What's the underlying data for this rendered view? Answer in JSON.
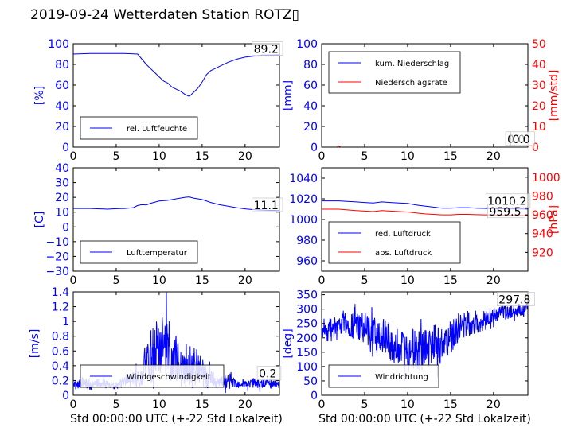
{
  "figure": {
    "title": "2019-09-24 Wetterdaten Station ROTZ▯"
  },
  "chart_data": [
    {
      "id": "humidity",
      "type": "line",
      "xlim": [
        0,
        24
      ],
      "xticks": [
        0,
        5,
        10,
        15,
        20
      ],
      "xlabel": "",
      "ylim": [
        0,
        100
      ],
      "yticks": [
        0,
        20,
        40,
        60,
        80,
        100
      ],
      "ylabel": "[%]",
      "ylabel_color": "#0000ff",
      "ytick_color": "#0000ff",
      "legend": {
        "placement": "bottom-left",
        "entries": [
          {
            "label": "rel. Luftfeuchte",
            "color": "#0000ff"
          }
        ]
      },
      "annotations": [
        {
          "text": "89.2",
          "x": 21.0,
          "y": 91
        }
      ],
      "series": [
        {
          "name": "rel. Luftfeuchte",
          "color": "#0000ff",
          "axis": "left",
          "x": [
            0,
            2,
            4,
            6,
            7.5,
            8.0,
            8.5,
            9,
            9.5,
            10,
            10.5,
            11,
            11.5,
            12,
            12.5,
            13,
            13.5,
            14,
            14.5,
            15,
            15.5,
            16,
            17,
            18,
            19,
            20,
            21,
            22,
            23,
            24
          ],
          "y": [
            90,
            90.5,
            90.5,
            90.5,
            90,
            85,
            80,
            76,
            72,
            68,
            64,
            62,
            58,
            56,
            54,
            51,
            49,
            53,
            57,
            63,
            70,
            74,
            78,
            82,
            85,
            87,
            88,
            89,
            89.1,
            89.2
          ]
        }
      ]
    },
    {
      "id": "precipitation",
      "type": "line",
      "xlim": [
        0,
        24
      ],
      "xticks": [
        0,
        5,
        10,
        15,
        20
      ],
      "xlabel": "",
      "ylim": [
        0,
        100
      ],
      "yticks": [
        0,
        20,
        40,
        60,
        80,
        100
      ],
      "ylabel": "[mm]",
      "ylabel_color": "#0000ff",
      "ytick_color": "#0000ff",
      "ylim2": [
        0,
        50
      ],
      "yticks2": [
        0,
        10,
        20,
        30,
        40,
        50
      ],
      "ylabel2": "[mm/std]",
      "ylabel2_color": "#ff0000",
      "legend": {
        "placement": "top-left",
        "entries": [
          {
            "label": "kum. Niederschlag",
            "color": "#0000ff"
          },
          {
            "label": "Niederschlagsrate",
            "color": "#ff0000"
          }
        ]
      },
      "annotations": [
        {
          "text": "0.0",
          "x": 21.6,
          "y": 4
        },
        {
          "text": "0.0",
          "x": 22.2,
          "y": 4
        }
      ],
      "series": [
        {
          "name": "kum. Niederschlag",
          "color": "#0000ff",
          "axis": "left",
          "x": [
            0,
            24
          ],
          "y": [
            0,
            0
          ]
        },
        {
          "name": "Niederschlagsrate",
          "color": "#ff0000",
          "axis": "right",
          "x": [
            0,
            1.8,
            2.0,
            2.2,
            24
          ],
          "y": [
            0,
            0,
            0.6,
            0,
            0
          ]
        }
      ]
    },
    {
      "id": "temperature",
      "type": "line",
      "xlim": [
        0,
        24
      ],
      "xticks": [
        0,
        5,
        10,
        15,
        20
      ],
      "xlabel": "",
      "ylim": [
        -30,
        40
      ],
      "yticks": [
        -30,
        -20,
        -10,
        0,
        10,
        20,
        30,
        40
      ],
      "ylabel": "[C]",
      "ylabel_color": "#0000ff",
      "ytick_color": "#0000ff",
      "legend": {
        "placement": "bottom-left",
        "entries": [
          {
            "label": "Lufttemperatur",
            "color": "#0000ff"
          }
        ]
      },
      "annotations": [
        {
          "text": "11.1",
          "x": 21.0,
          "y": 12
        }
      ],
      "series": [
        {
          "name": "Lufttemperatur",
          "color": "#0000ff",
          "axis": "left",
          "x": [
            0,
            2,
            4,
            5,
            6,
            7,
            7.5,
            8,
            8.5,
            9,
            10,
            11,
            12,
            13,
            13.5,
            14,
            15,
            16,
            17,
            18,
            19,
            20,
            21,
            22,
            23,
            24
          ],
          "y": [
            12.5,
            12.5,
            12.0,
            12.3,
            12.5,
            13,
            14.5,
            15,
            14.8,
            16,
            17.5,
            18,
            19,
            20,
            20.3,
            19.5,
            18.5,
            16.5,
            15,
            14,
            13,
            12.2,
            11.7,
            11.4,
            11.2,
            11.1
          ]
        }
      ]
    },
    {
      "id": "pressure",
      "type": "line",
      "xlim": [
        0,
        24
      ],
      "xticks": [
        0,
        5,
        10,
        15,
        20
      ],
      "xlabel": "",
      "ylim": [
        950,
        1050
      ],
      "yticks": [
        960,
        980,
        1000,
        1020,
        1040
      ],
      "ylabel": "",
      "ytick_color": "#0000ff",
      "ylim2": [
        900,
        1010
      ],
      "yticks2": [
        920,
        940,
        960,
        980,
        1000
      ],
      "ylabel2": "[hPa]",
      "ylabel2_color": "#ff0000",
      "legend": {
        "placement": "bottom-left",
        "entries": [
          {
            "label": "red. Luftdruck",
            "color": "#0000ff"
          },
          {
            "label": "abs. Luftdruck",
            "color": "#ff0000"
          }
        ]
      },
      "annotations": [
        {
          "text": "1010.2",
          "x": 19.3,
          "y": 1014
        },
        {
          "text": "959.5",
          "x": 19.5,
          "y": 1004
        }
      ],
      "series": [
        {
          "name": "red. Luftdruck",
          "color": "#0000ff",
          "axis": "left",
          "x": [
            0,
            2,
            4,
            5,
            6,
            7,
            8,
            9,
            10,
            11,
            12,
            13,
            14,
            15,
            16,
            17,
            18,
            19,
            20,
            21,
            22,
            23,
            24
          ],
          "y": [
            1018,
            1018,
            1017,
            1016.5,
            1016,
            1017,
            1016.5,
            1016,
            1015.5,
            1014,
            1013,
            1012,
            1011,
            1011,
            1011.5,
            1011.5,
            1011,
            1010.8,
            1010.6,
            1010.5,
            1010.3,
            1010.2,
            1010.2
          ]
        },
        {
          "name": "abs. Luftdruck",
          "color": "#ff0000",
          "axis": "right",
          "x": [
            0,
            2,
            4,
            5,
            6,
            7,
            8,
            9,
            10,
            11,
            12,
            13,
            14,
            15,
            16,
            17,
            18,
            19,
            20,
            21,
            22,
            23,
            24
          ],
          "y": [
            966,
            966,
            964.5,
            964,
            963.5,
            964.5,
            964,
            963.5,
            963,
            962,
            961,
            960.5,
            960,
            960,
            960.5,
            960.5,
            960.2,
            960,
            959.8,
            959.7,
            959.6,
            959.5,
            959.5
          ]
        }
      ]
    },
    {
      "id": "wind_speed",
      "type": "line",
      "xlim": [
        0,
        24
      ],
      "xticks": [
        0,
        5,
        10,
        15,
        20
      ],
      "xlabel": "Std 00:00:00 UTC (+-22 Std Lokalzeit)",
      "ylim": [
        0,
        1.4
      ],
      "yticks": [
        0.0,
        0.2,
        0.4,
        0.6,
        0.8,
        1.0,
        1.2,
        1.4
      ],
      "ylabel": "[m/s]",
      "ylabel_color": "#0000ff",
      "ytick_color": "#0000ff",
      "legend": {
        "placement": "bottom-left",
        "entries": [
          {
            "label": "Windgeschwindigkeit",
            "color": "#0000ff"
          }
        ]
      },
      "annotations": [
        {
          "text": "0.2",
          "x": 21.6,
          "y": 0.24
        }
      ],
      "series": [
        {
          "name": "Windgeschwindigkeit",
          "color": "#0000ff",
          "axis": "left",
          "noisy": true,
          "x": [
            0,
            1,
            2,
            3,
            4,
            5,
            6,
            7,
            7.5,
            8,
            8.5,
            9,
            9.5,
            10,
            10.5,
            11,
            11.5,
            12,
            12.5,
            13,
            13.5,
            14,
            14.5,
            15,
            15.5,
            16,
            17,
            18,
            19,
            20,
            21,
            22,
            23,
            24
          ],
          "y": [
            0.12,
            0.18,
            0.14,
            0.16,
            0.15,
            0.13,
            0.18,
            0.22,
            0.28,
            0.32,
            0.42,
            0.55,
            0.6,
            0.75,
            0.62,
            0.68,
            0.55,
            0.5,
            0.42,
            0.45,
            0.38,
            0.4,
            0.35,
            0.3,
            0.25,
            0.22,
            0.18,
            0.2,
            0.15,
            0.14,
            0.17,
            0.15,
            0.16,
            0.14
          ],
          "amp": [
            0.05,
            0.08,
            0.06,
            0.07,
            0.06,
            0.05,
            0.08,
            0.12,
            0.16,
            0.2,
            0.3,
            0.4,
            0.4,
            0.45,
            0.45,
            0.5,
            0.4,
            0.35,
            0.3,
            0.35,
            0.3,
            0.3,
            0.25,
            0.2,
            0.15,
            0.12,
            0.08,
            0.1,
            0.06,
            0.05,
            0.07,
            0.06,
            0.07,
            0.05
          ]
        }
      ]
    },
    {
      "id": "wind_direction",
      "type": "line",
      "xlim": [
        0,
        24
      ],
      "xticks": [
        0,
        5,
        10,
        15,
        20
      ],
      "xlabel": "Std 00:00:00 UTC (+-22 Std Lokalzeit)",
      "ylim": [
        0,
        360
      ],
      "yticks": [
        0,
        50,
        100,
        150,
        200,
        250,
        300,
        350
      ],
      "ylabel": "[deg]",
      "ylabel_color": "#0000ff",
      "ytick_color": "#0000ff",
      "legend": {
        "placement": "bottom-left",
        "entries": [
          {
            "label": "Windrichtung",
            "color": "#0000ff"
          }
        ]
      },
      "annotations": [
        {
          "text": "297.8",
          "x": 20.6,
          "y": 320
        }
      ],
      "series": [
        {
          "name": "Windrichtung",
          "color": "#0000ff",
          "axis": "left",
          "noisy": true,
          "x": [
            0,
            1,
            2,
            3,
            4,
            5,
            6,
            7,
            8,
            9,
            10,
            11,
            12,
            13,
            14,
            15,
            16,
            17,
            18,
            19,
            20,
            21,
            22,
            23,
            24
          ],
          "y": [
            240,
            230,
            250,
            255,
            240,
            230,
            200,
            215,
            180,
            170,
            150,
            160,
            155,
            190,
            180,
            200,
            240,
            250,
            255,
            260,
            275,
            285,
            290,
            295,
            298
          ],
          "amp": [
            50,
            50,
            40,
            45,
            50,
            60,
            70,
            60,
            70,
            70,
            80,
            80,
            80,
            70,
            70,
            60,
            50,
            45,
            40,
            35,
            30,
            25,
            25,
            25,
            20
          ]
        }
      ]
    }
  ]
}
